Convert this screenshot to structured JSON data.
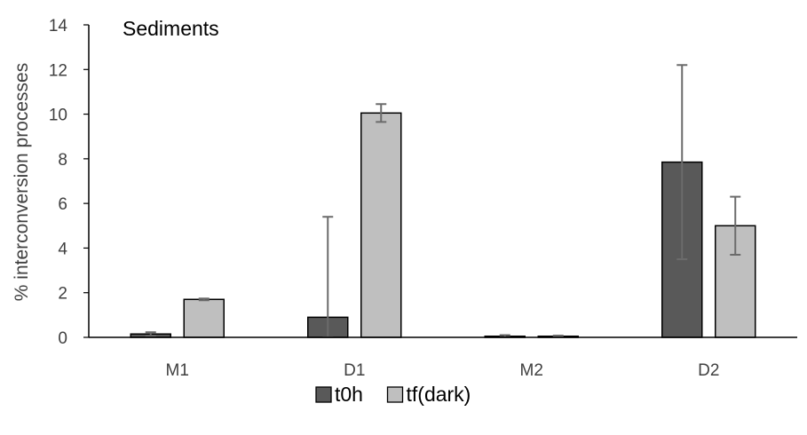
{
  "chart_data": {
    "type": "bar",
    "title": "Sediments",
    "ylabel": "% interconversion processes",
    "xlabel": "",
    "ylim": [
      0,
      14
    ],
    "yticks": [
      0,
      2,
      4,
      6,
      8,
      10,
      12,
      14
    ],
    "categories": [
      "M1",
      "D1",
      "M2",
      "D2"
    ],
    "series": [
      {
        "name": "t0h",
        "color": "#595959",
        "values": [
          0.15,
          0.9,
          0.05,
          7.85
        ],
        "errors": [
          0.08,
          4.5,
          0.05,
          4.35
        ]
      },
      {
        "name": "tf(dark)",
        "color": "#bfbfbf",
        "values": [
          1.7,
          10.05,
          0.05,
          5.0
        ],
        "errors": [
          0.04,
          0.4,
          0.03,
          1.3
        ]
      }
    ],
    "grid": false,
    "legend_position": "bottom-center"
  }
}
